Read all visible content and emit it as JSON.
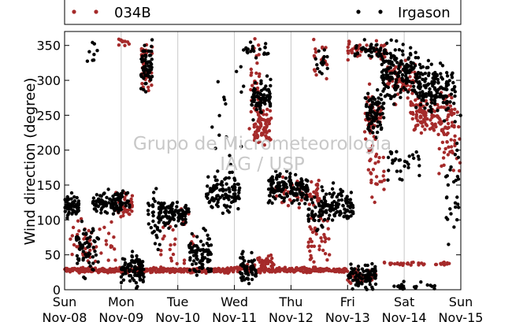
{
  "chart_data": {
    "type": "scatter",
    "title": "",
    "xlabel": "",
    "ylabel": "Wind direction (degree)",
    "ylim": [
      0,
      370
    ],
    "xlim": [
      0,
      7
    ],
    "x_unit": "days from Sun Nov-08 00:00",
    "yticks": [
      0,
      50,
      100,
      150,
      200,
      250,
      300,
      350
    ],
    "xticks": [
      {
        "day": "Sun",
        "date": "Nov-08"
      },
      {
        "day": "Mon",
        "date": "Nov-09"
      },
      {
        "day": "Tue",
        "date": "Nov-10"
      },
      {
        "day": "Wed",
        "date": "Nov-11"
      },
      {
        "day": "Thu",
        "date": "Nov-12"
      },
      {
        "day": "Fri",
        "date": "Nov-13"
      },
      {
        "day": "Sat",
        "date": "Nov-14"
      },
      {
        "day": "Sun",
        "date": "Nov-15"
      }
    ],
    "grid": "vertical",
    "legend_placement": "top, outside",
    "watermark": [
      "Grupo de Micrometeorologia",
      "IAG / USP"
    ],
    "series": [
      {
        "name": "034B",
        "color": "#a52a2a",
        "clusters": [
          {
            "x": [
              0.0,
              1.0
            ],
            "y": 28,
            "spread": 3,
            "n": 140
          },
          {
            "x": [
              1.0,
              3.0
            ],
            "y": 28,
            "spread": 3,
            "n": 260
          },
          {
            "x": [
              3.0,
              3.5
            ],
            "y": 30,
            "spread": 5,
            "n": 50
          },
          {
            "x": [
              3.5,
              4.0
            ],
            "y": 28,
            "spread": 3,
            "n": 50
          },
          {
            "x": [
              4.0,
              5.0
            ],
            "y": 28,
            "spread": 3,
            "n": 140
          },
          {
            "x": [
              0.1,
              0.9
            ],
            "y": 65,
            "spread": 30,
            "n": 50
          },
          {
            "x": [
              0.9,
              1.2
            ],
            "y": 120,
            "spread": 14,
            "n": 40
          },
          {
            "x": [
              0.95,
              1.15
            ],
            "y": 355,
            "spread": 6,
            "n": 10
          },
          {
            "x": [
              1.35,
              1.55
            ],
            "y": 320,
            "spread": 32,
            "n": 40
          },
          {
            "x": [
              1.7,
              2.3
            ],
            "y": 70,
            "spread": 40,
            "n": 30
          },
          {
            "x": [
              3.25,
              3.45
            ],
            "y": 300,
            "spread": 60,
            "n": 35
          },
          {
            "x": [
              3.35,
              3.65
            ],
            "y": 235,
            "spread": 25,
            "n": 70
          },
          {
            "x": [
              3.4,
              3.7
            ],
            "y": 40,
            "spread": 12,
            "n": 30
          },
          {
            "x": [
              3.7,
              4.5
            ],
            "y": 140,
            "spread": 20,
            "n": 60
          },
          {
            "x": [
              4.3,
              4.7
            ],
            "y": 70,
            "spread": 35,
            "n": 40
          },
          {
            "x": [
              4.4,
              4.65
            ],
            "y": 330,
            "spread": 25,
            "n": 20
          },
          {
            "x": [
              5.0,
              5.5
            ],
            "y": 20,
            "spread": 10,
            "n": 50
          },
          {
            "x": [
              5.3,
              5.6
            ],
            "y": 230,
            "spread": 40,
            "n": 60
          },
          {
            "x": [
              5.0,
              5.7
            ],
            "y": 345,
            "spread": 12,
            "n": 50
          },
          {
            "x": [
              5.4,
              5.65
            ],
            "y": 150,
            "spread": 40,
            "n": 20
          },
          {
            "x": [
              5.7,
              6.2
            ],
            "y": 300,
            "spread": 25,
            "n": 60
          },
          {
            "x": [
              6.1,
              6.9
            ],
            "y": 255,
            "spread": 25,
            "n": 140
          },
          {
            "x": [
              5.6,
              6.4
            ],
            "y": 37,
            "spread": 3,
            "n": 25
          },
          {
            "x": [
              6.5,
              6.9
            ],
            "y": 37,
            "spread": 3,
            "n": 10
          },
          {
            "x": [
              6.6,
              7.0
            ],
            "y": 200,
            "spread": 40,
            "n": 35
          }
        ]
      },
      {
        "name": "Irgason",
        "color": "#000000",
        "clusters": [
          {
            "x": [
              0.0,
              0.25
            ],
            "y": 120,
            "spread": 12,
            "n": 70
          },
          {
            "x": [
              0.2,
              0.6
            ],
            "y": 55,
            "spread": 35,
            "n": 60
          },
          {
            "x": [
              0.5,
              0.9
            ],
            "y": 125,
            "spread": 12,
            "n": 60
          },
          {
            "x": [
              0.4,
              0.6
            ],
            "y": 340,
            "spread": 15,
            "n": 8
          },
          {
            "x": [
              0.85,
              1.15
            ],
            "y": 125,
            "spread": 15,
            "n": 50
          },
          {
            "x": [
              1.0,
              1.4
            ],
            "y": 30,
            "spread": 20,
            "n": 90
          },
          {
            "x": [
              1.35,
              1.55
            ],
            "y": 320,
            "spread": 30,
            "n": 70
          },
          {
            "x": [
              1.45,
              1.7
            ],
            "y": 100,
            "spread": 40,
            "n": 30
          },
          {
            "x": [
              1.65,
              2.2
            ],
            "y": 110,
            "spread": 15,
            "n": 100
          },
          {
            "x": [
              2.2,
              2.6
            ],
            "y": 50,
            "spread": 25,
            "n": 90
          },
          {
            "x": [
              2.5,
              3.1
            ],
            "y": 140,
            "spread": 25,
            "n": 110
          },
          {
            "x": [
              2.6,
              3.2
            ],
            "y": 265,
            "spread": 80,
            "n": 15
          },
          {
            "x": [
              3.1,
              3.4
            ],
            "y": 30,
            "spread": 20,
            "n": 60
          },
          {
            "x": [
              3.3,
              3.65
            ],
            "y": 275,
            "spread": 25,
            "n": 80
          },
          {
            "x": [
              3.15,
              3.6
            ],
            "y": 345,
            "spread": 12,
            "n": 20
          },
          {
            "x": [
              3.6,
              4.3
            ],
            "y": 145,
            "spread": 18,
            "n": 150
          },
          {
            "x": [
              4.3,
              4.6
            ],
            "y": 110,
            "spread": 25,
            "n": 40
          },
          {
            "x": [
              4.55,
              5.1
            ],
            "y": 120,
            "spread": 20,
            "n": 100
          },
          {
            "x": [
              4.4,
              4.65
            ],
            "y": 330,
            "spread": 20,
            "n": 15
          },
          {
            "x": [
              5.0,
              5.5
            ],
            "y": 20,
            "spread": 15,
            "n": 90
          },
          {
            "x": [
              5.3,
              5.65
            ],
            "y": 255,
            "spread": 25,
            "n": 80
          },
          {
            "x": [
              5.1,
              5.7
            ],
            "y": 345,
            "spread": 12,
            "n": 40
          },
          {
            "x": [
              5.6,
              6.25
            ],
            "y": 310,
            "spread": 35,
            "n": 160
          },
          {
            "x": [
              6.2,
              6.9
            ],
            "y": 290,
            "spread": 30,
            "n": 150
          },
          {
            "x": [
              5.7,
              6.3
            ],
            "y": 180,
            "spread": 30,
            "n": 30
          },
          {
            "x": [
              5.8,
              6.6
            ],
            "y": 5,
            "spread": 5,
            "n": 20
          },
          {
            "x": [
              6.7,
              7.0
            ],
            "y": 150,
            "spread": 80,
            "n": 30
          }
        ]
      }
    ]
  }
}
